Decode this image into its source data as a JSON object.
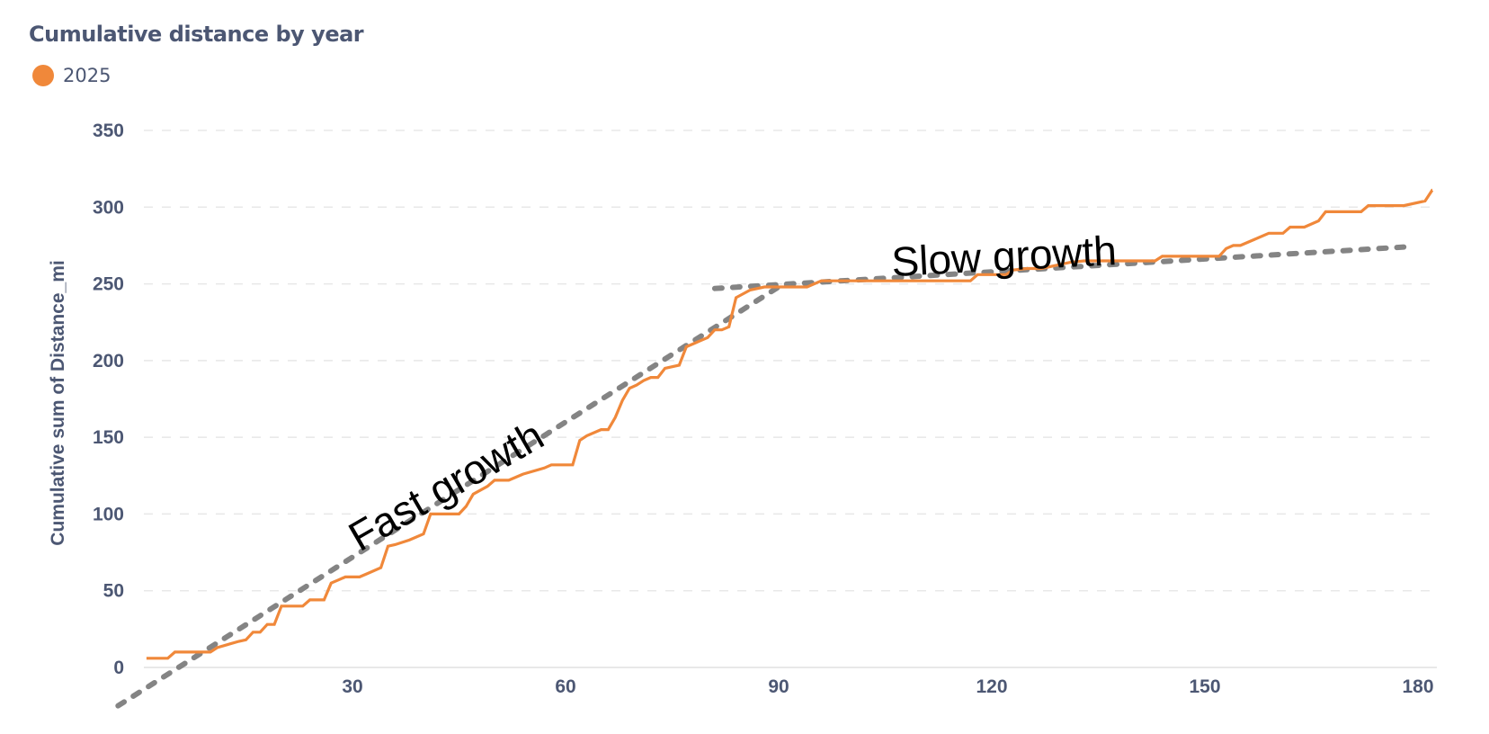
{
  "header": {
    "title": "Cumulative distance by year"
  },
  "legend": {
    "items": [
      {
        "label": "2025",
        "color": "#f0883a"
      }
    ]
  },
  "colors": {
    "series": "#f0883a",
    "trend": "#7a7a7a",
    "grid": "#e8e8e8",
    "axis_text": "#4c5773"
  },
  "chart_data": {
    "type": "line",
    "title": "Cumulative distance by year",
    "xlabel": "",
    "ylabel": "Cumulative sum of Distance_mi",
    "xlim": [
      0,
      182
    ],
    "ylim": [
      0,
      350
    ],
    "x_ticks": [
      30,
      60,
      90,
      120,
      150,
      180
    ],
    "y_ticks": [
      0,
      50,
      100,
      150,
      200,
      250,
      300,
      350
    ],
    "grid": {
      "horizontal": true,
      "vertical": false,
      "style": "dashed"
    },
    "legend_position": "top-left",
    "series": [
      {
        "name": "2025",
        "color": "#f0883a",
        "points": [
          [
            1,
            6
          ],
          [
            4,
            6
          ],
          [
            5,
            10
          ],
          [
            8,
            10
          ],
          [
            10,
            10
          ],
          [
            11,
            13
          ],
          [
            14,
            17
          ],
          [
            15,
            18
          ],
          [
            16,
            23
          ],
          [
            17,
            23
          ],
          [
            18,
            28
          ],
          [
            19,
            28
          ],
          [
            20,
            40
          ],
          [
            22,
            40
          ],
          [
            23,
            40
          ],
          [
            24,
            44
          ],
          [
            26,
            44
          ],
          [
            27,
            55
          ],
          [
            28,
            57
          ],
          [
            29,
            59
          ],
          [
            31,
            59
          ],
          [
            32,
            61
          ],
          [
            34,
            65
          ],
          [
            35,
            79
          ],
          [
            36,
            80
          ],
          [
            38,
            83
          ],
          [
            40,
            87
          ],
          [
            41,
            100
          ],
          [
            43,
            100
          ],
          [
            45,
            100
          ],
          [
            46,
            105
          ],
          [
            47,
            113
          ],
          [
            49,
            118
          ],
          [
            50,
            122
          ],
          [
            52,
            122
          ],
          [
            54,
            126
          ],
          [
            57,
            130
          ],
          [
            58,
            132
          ],
          [
            61,
            132
          ],
          [
            62,
            148
          ],
          [
            63,
            151
          ],
          [
            65,
            155
          ],
          [
            66,
            155
          ],
          [
            67,
            163
          ],
          [
            68,
            174
          ],
          [
            69,
            182
          ],
          [
            70,
            184
          ],
          [
            71,
            187
          ],
          [
            72,
            189
          ],
          [
            73,
            189
          ],
          [
            74,
            195
          ],
          [
            76,
            197
          ],
          [
            77,
            209
          ],
          [
            78,
            211
          ],
          [
            79,
            213
          ],
          [
            80,
            215
          ],
          [
            81,
            220
          ],
          [
            82,
            220
          ],
          [
            83,
            222
          ],
          [
            84,
            241
          ],
          [
            86,
            246
          ],
          [
            88,
            248
          ],
          [
            91,
            248
          ],
          [
            94,
            248
          ],
          [
            96,
            252
          ],
          [
            101,
            252
          ],
          [
            104,
            252
          ],
          [
            110,
            252
          ],
          [
            114,
            252
          ],
          [
            117,
            252
          ],
          [
            118,
            256
          ],
          [
            122,
            256
          ],
          [
            123,
            259
          ],
          [
            125,
            260
          ],
          [
            127,
            260
          ],
          [
            131,
            264
          ],
          [
            133,
            265
          ],
          [
            136,
            265
          ],
          [
            140,
            265
          ],
          [
            143,
            265
          ],
          [
            144,
            268
          ],
          [
            148,
            268
          ],
          [
            150,
            268
          ],
          [
            152,
            268
          ],
          [
            153,
            273
          ],
          [
            154,
            275
          ],
          [
            155,
            275
          ],
          [
            157,
            279
          ],
          [
            159,
            283
          ],
          [
            161,
            283
          ],
          [
            162,
            287
          ],
          [
            164,
            287
          ],
          [
            166,
            291
          ],
          [
            167,
            297
          ],
          [
            169,
            297
          ],
          [
            172,
            297
          ],
          [
            173,
            301
          ],
          [
            175,
            301
          ],
          [
            178,
            301
          ],
          [
            181,
            304
          ],
          [
            182,
            311
          ],
          [
            184,
            311
          ]
        ]
      }
    ],
    "trend_lines": [
      {
        "name": "fast-growth-trend",
        "from": [
          -3,
          -25
        ],
        "to": [
          90,
          248
        ]
      },
      {
        "name": "slow-growth-trend",
        "from": [
          81,
          247
        ],
        "to": [
          178,
          274
        ]
      }
    ],
    "annotations": [
      {
        "text": "Fast growth",
        "x": 31,
        "y": 88,
        "rotation": -30
      },
      {
        "text": "Slow growth",
        "x": 106,
        "y": 262,
        "rotation": -3
      }
    ]
  },
  "annotations": {
    "fast": "Fast growth",
    "slow": "Slow growth"
  }
}
